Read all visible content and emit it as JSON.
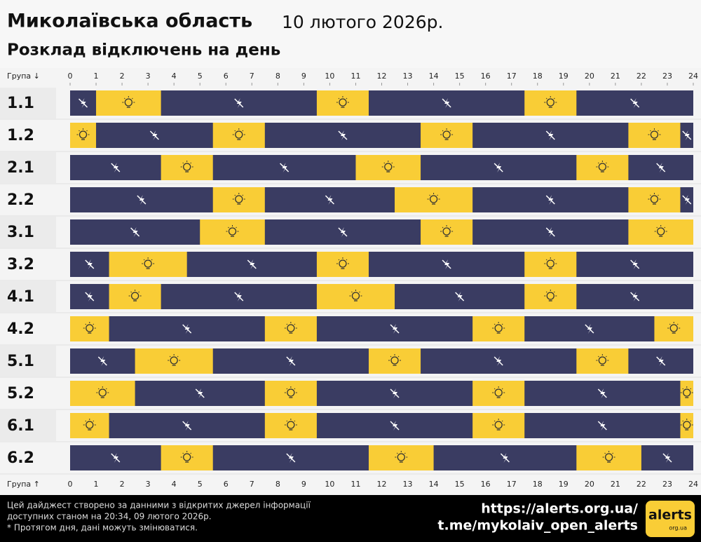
{
  "chart_data": {
    "type": "timeline",
    "title": "Миколаївська область",
    "date": "10 лютого 2026р.",
    "subtitle": "Розклад відключень на день",
    "axis_label_top": "Група ↓",
    "axis_label_bottom": "Група ↑",
    "xlim": [
      0,
      24
    ],
    "xticks": [
      0,
      1,
      2,
      3,
      4,
      5,
      6,
      7,
      8,
      9,
      10,
      11,
      12,
      13,
      14,
      15,
      16,
      17,
      18,
      19,
      20,
      21,
      22,
      23,
      24
    ],
    "on_color": "#f9cd36",
    "off_color": "#3a3c62",
    "groups": [
      {
        "name": "1.1",
        "off": [
          [
            0,
            1
          ],
          [
            3.5,
            9.5
          ],
          [
            11.5,
            17.5
          ],
          [
            19.5,
            24
          ]
        ]
      },
      {
        "name": "1.2",
        "off": [
          [
            1,
            5.5
          ],
          [
            7.5,
            13.5
          ],
          [
            15.5,
            21.5
          ],
          [
            23.5,
            24
          ]
        ]
      },
      {
        "name": "2.1",
        "off": [
          [
            0,
            3.5
          ],
          [
            5.5,
            11
          ],
          [
            13.5,
            19.5
          ],
          [
            21.5,
            24
          ]
        ]
      },
      {
        "name": "2.2",
        "off": [
          [
            0,
            5.5
          ],
          [
            7.5,
            12.5
          ],
          [
            15.5,
            21.5
          ],
          [
            23.5,
            24
          ]
        ]
      },
      {
        "name": "3.1",
        "off": [
          [
            0,
            5
          ],
          [
            7.5,
            13.5
          ],
          [
            15.5,
            21.5
          ]
        ]
      },
      {
        "name": "3.2",
        "off": [
          [
            0,
            1.5
          ],
          [
            4.5,
            9.5
          ],
          [
            11.5,
            17.5
          ],
          [
            19.5,
            24
          ]
        ]
      },
      {
        "name": "4.1",
        "off": [
          [
            0,
            1.5
          ],
          [
            3.5,
            9.5
          ],
          [
            12.5,
            17.5
          ],
          [
            19.5,
            24
          ]
        ]
      },
      {
        "name": "4.2",
        "off": [
          [
            1.5,
            7.5
          ],
          [
            9.5,
            15.5
          ],
          [
            17.5,
            22.5
          ]
        ]
      },
      {
        "name": "5.1",
        "off": [
          [
            0,
            2.5
          ],
          [
            5.5,
            11.5
          ],
          [
            13.5,
            19.5
          ],
          [
            21.5,
            24
          ]
        ]
      },
      {
        "name": "5.2",
        "off": [
          [
            2.5,
            7.5
          ],
          [
            9.5,
            15.5
          ],
          [
            17.5,
            23.5
          ]
        ]
      },
      {
        "name": "6.1",
        "off": [
          [
            1.5,
            7.5
          ],
          [
            9.5,
            15.5
          ],
          [
            17.5,
            23.5
          ]
        ]
      },
      {
        "name": "6.2",
        "off": [
          [
            0,
            3.5
          ],
          [
            5.5,
            11.5
          ],
          [
            14,
            19.5
          ],
          [
            22,
            24
          ]
        ]
      }
    ]
  },
  "footer": {
    "note_line_1": "Цей дайджест створено за данними з відкритих джерел інформації",
    "note_line_2": "доступних станом на 20:34, 09 лютого 2026р.",
    "note_line_3": "* Протягом дня, дані можуть змінюватися.",
    "link_1": "https://alerts.org.ua/",
    "link_2": "t.me/mykolaiv_open_alerts",
    "logo": "alerts",
    "logo_sub": "org.ua"
  }
}
